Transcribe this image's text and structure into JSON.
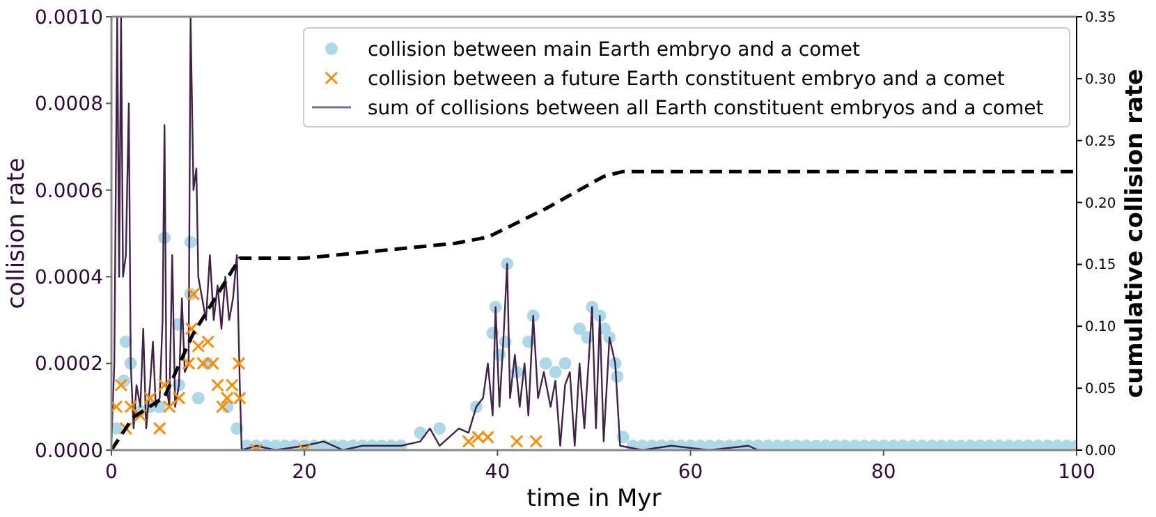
{
  "chart_data": {
    "type": "line",
    "xlabel": "time in Myr",
    "ylabel": "collision rate",
    "y2label": "cumulative collision rate",
    "xlim": [
      0,
      100
    ],
    "xticks": [
      0,
      20,
      40,
      60,
      80,
      100
    ],
    "ylim": [
      0,
      0.001
    ],
    "yticks": [
      {
        "value": 0,
        "label": "0.0000"
      },
      {
        "value": 0.0002,
        "label": "0.0002"
      },
      {
        "value": 0.0004,
        "label": "0.0004"
      },
      {
        "value": 0.0006,
        "label": "0.0006"
      },
      {
        "value": 0.0008,
        "label": "0.0008"
      },
      {
        "value": 0.001,
        "label": "0.0010"
      }
    ],
    "y2lim": [
      0,
      0.35
    ],
    "y2ticks": [
      {
        "value": 0,
        "label": "0.00"
      },
      {
        "value": 0.05,
        "label": "0.05"
      },
      {
        "value": 0.1,
        "label": "0.10"
      },
      {
        "value": 0.15,
        "label": "0.15"
      },
      {
        "value": 0.2,
        "label": "0.20"
      },
      {
        "value": 0.25,
        "label": "0.25"
      },
      {
        "value": 0.3,
        "label": "0.30"
      },
      {
        "value": 0.35,
        "label": "0.35"
      }
    ],
    "legend": "top right",
    "grid": false,
    "series": [
      {
        "name": "collision between main Earth embryo and a comet",
        "type": "scatter",
        "marker": "circle",
        "color": "#add8e6",
        "x": [
          0.5,
          1.3,
          1.5,
          2,
          3,
          4,
          5,
          5.5,
          6.9,
          7,
          8.2,
          8.2,
          9,
          10,
          12,
          13,
          14,
          15,
          16,
          17,
          18,
          19,
          20,
          21,
          22,
          23,
          24,
          25,
          26,
          27,
          28,
          29,
          30,
          32,
          34,
          37.8,
          39.5,
          39.8,
          40.2,
          40.8,
          41,
          42,
          43.2,
          43.7,
          45,
          46,
          47,
          48.5,
          49.3,
          49.8,
          50.6,
          51.1,
          51.6,
          52.2,
          52.4,
          53,
          54,
          55,
          56,
          57,
          58,
          59,
          60,
          61,
          62,
          63,
          64,
          65,
          66,
          67,
          68,
          69,
          70,
          71,
          72,
          73,
          74,
          75,
          76,
          77,
          78,
          79,
          80,
          81,
          82,
          83,
          84,
          85,
          86,
          87,
          88,
          89,
          90,
          91,
          92,
          93,
          94,
          95,
          96,
          97,
          98,
          99,
          100
        ],
        "values": [
          5e-05,
          0.00016,
          0.00025,
          0.0002,
          9e-05,
          0.0001,
          0.0001,
          0.00049,
          0.00029,
          0.00015,
          0.00048,
          0.00036,
          0.00012,
          0.0002,
          0.0001,
          5e-05,
          1e-05,
          1e-05,
          1e-05,
          1e-05,
          1e-05,
          1e-05,
          1e-05,
          1e-05,
          1e-05,
          1e-05,
          1e-05,
          1e-05,
          1e-05,
          1e-05,
          1e-05,
          1e-05,
          1e-05,
          4e-05,
          5e-05,
          0.0001,
          0.00027,
          0.00033,
          0.00022,
          0.00025,
          0.00043,
          0.00018,
          0.00025,
          0.00031,
          0.0002,
          0.00018,
          0.0002,
          0.00028,
          0.00026,
          0.00033,
          0.00031,
          0.00028,
          0.00026,
          0.0002,
          0.00017,
          3e-05,
          1e-05,
          1e-05,
          1e-05,
          1e-05,
          1e-05,
          1e-05,
          1e-05,
          1e-05,
          1e-05,
          1e-05,
          1e-05,
          1e-05,
          1e-05,
          1e-05,
          1e-05,
          1e-05,
          1e-05,
          1e-05,
          1e-05,
          1e-05,
          1e-05,
          1e-05,
          1e-05,
          1e-05,
          1e-05,
          1e-05,
          1e-05,
          1e-05,
          1e-05,
          1e-05,
          1e-05,
          1e-05,
          1e-05,
          1e-05,
          1e-05,
          1e-05,
          1e-05,
          1e-05,
          1e-05,
          1e-05,
          1e-05,
          1e-05,
          1e-05,
          1e-05,
          1e-05,
          1e-05,
          1e-05
        ]
      },
      {
        "name": "collision between a future Earth constituent embryo and a comet",
        "type": "scatter",
        "marker": "cross",
        "color": "#ff8c00",
        "x": [
          0.5,
          1,
          1.5,
          2,
          3,
          4,
          5,
          5.5,
          6,
          7,
          8,
          8.3,
          8.5,
          9,
          9.5,
          10,
          10.5,
          11,
          11.5,
          12,
          12.5,
          13.2,
          13.3,
          15,
          20,
          37,
          38,
          39,
          42,
          44
        ],
        "values": [
          0.0001,
          0.00015,
          5e-05,
          0.0001,
          8e-05,
          0.00012,
          5e-05,
          0.00015,
          0.0001,
          0.00012,
          0.0002,
          0.00028,
          0.00036,
          0.00024,
          0.0002,
          0.00025,
          0.0002,
          0.00015,
          0.0001,
          0.00012,
          0.00015,
          0.0002,
          0.00012,
          0,
          0,
          2e-05,
          3e-05,
          3e-05,
          2e-05,
          2e-05
        ]
      },
      {
        "name": "sum of collisions between all Earth constituent embryos and a comet",
        "marker": "none",
        "line_style": "solid",
        "color": "#2e0a3a",
        "x": [
          0,
          0.3,
          0.6,
          0.8,
          1,
          1.2,
          1.5,
          1.8,
          2,
          2.3,
          2.6,
          3,
          3.3,
          3.6,
          4,
          4.3,
          4.6,
          5,
          5.3,
          5.5,
          5.7,
          6,
          6.3,
          6.6,
          7,
          7.3,
          7.6,
          8,
          8.2,
          8.5,
          8.8,
          9,
          9.4,
          9.8,
          10.2,
          10.6,
          11,
          11.4,
          11.8,
          12.2,
          12.6,
          13,
          13.3,
          13.5,
          15,
          17,
          20,
          22,
          24,
          26,
          28,
          30,
          32,
          33,
          34,
          35,
          36,
          37,
          37.8,
          38.5,
          39,
          39.5,
          39.8,
          40.2,
          40.6,
          41,
          41.3,
          41.8,
          42.3,
          42.8,
          43.2,
          43.7,
          44.2,
          44.8,
          45.5,
          46,
          46.5,
          47,
          47.5,
          48,
          48.5,
          49,
          49.8,
          50.2,
          50.6,
          51,
          51.6,
          52.2,
          52.7,
          55,
          58,
          62,
          66,
          67
        ],
        "values": [
          2e-05,
          0.0002,
          0.001,
          0.0004,
          0.001,
          0.0004,
          0.00045,
          0.0008,
          0.0002,
          5e-05,
          0.00015,
          0.0001,
          0.00028,
          5e-05,
          0.00015,
          0.00025,
          0.0001,
          0.00012,
          0.0003,
          0.00075,
          0.00015,
          0.0001,
          0.00045,
          0.0001,
          0.00015,
          0.00035,
          0.00018,
          0.0002,
          0.001,
          0.0006,
          0.00065,
          0.0004,
          0.00035,
          0.0003,
          0.00045,
          0.0003,
          0.00038,
          0.00028,
          0.0004,
          0.0003,
          0.00035,
          0.00045,
          0.00015,
          0,
          1e-05,
          0,
          1e-05,
          2e-05,
          0,
          1e-05,
          1e-05,
          1e-05,
          2e-05,
          5e-05,
          1e-05,
          3e-05,
          5e-05,
          4e-05,
          0.0001,
          0.00012,
          0.0002,
          8e-05,
          0.00033,
          0.0001,
          0.00025,
          0.00043,
          0.00012,
          0.00022,
          0.0001,
          0.0002,
          8e-05,
          0.00031,
          0.00012,
          0.00018,
          0.0001,
          0.00016,
          1e-05,
          0.00015,
          0.00018,
          1e-05,
          0.0002,
          5e-05,
          0.00033,
          5e-05,
          0.00031,
          2e-05,
          0.00026,
          0.0002,
          1e-05,
          0,
          1e-05,
          0,
          1e-05,
          0
        ]
      },
      {
        "axis": "y2",
        "marker": "none",
        "line_style": "dashed",
        "color": "#000000",
        "x": [
          0,
          2.2,
          5.5,
          8.4,
          13.3,
          20,
          35.6,
          39,
          45,
          51,
          53,
          100
        ],
        "values": [
          0,
          0.026,
          0.043,
          0.093,
          0.155,
          0.155,
          0.167,
          0.172,
          0.195,
          0.221,
          0.225,
          0.225
        ]
      }
    ]
  }
}
